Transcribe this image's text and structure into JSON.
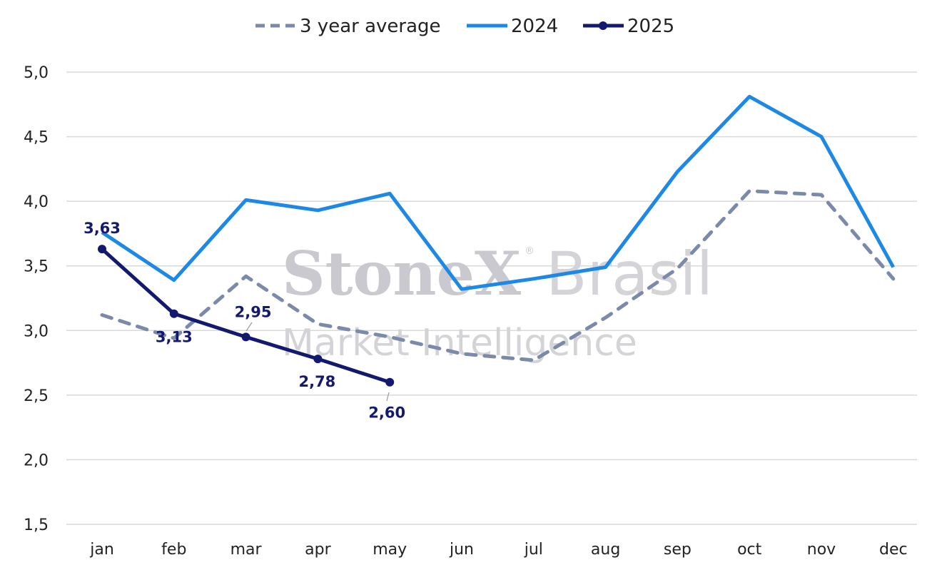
{
  "watermark": {
    "brand": "StoneX",
    "suffix": "Brasil",
    "registered": "®",
    "tagline": "Market Intelligence"
  },
  "chart_data": {
    "type": "line",
    "title": "",
    "xlabel": "",
    "ylabel": "",
    "categories": [
      "jan",
      "feb",
      "mar",
      "apr",
      "may",
      "jun",
      "jul",
      "aug",
      "sep",
      "oct",
      "nov",
      "dec"
    ],
    "ylim": [
      1.5,
      5.0
    ],
    "yticks": [
      1.5,
      2.0,
      2.5,
      3.0,
      3.5,
      4.0,
      4.5,
      5.0
    ],
    "ytick_labels": [
      "1,5",
      "2,0",
      "2,5",
      "3,0",
      "3,5",
      "4,0",
      "4,5",
      "5,0"
    ],
    "grid": true,
    "legend": "top-center",
    "series": [
      {
        "name": "3 year average",
        "style": "dashed",
        "color": "#7a8aa8",
        "values": [
          3.12,
          2.94,
          3.42,
          3.05,
          2.95,
          2.82,
          2.77,
          3.1,
          3.48,
          4.08,
          4.05,
          3.4
        ]
      },
      {
        "name": "2024",
        "style": "solid",
        "color": "#1e88e5",
        "values": [
          3.76,
          3.39,
          4.01,
          3.93,
          4.06,
          3.32,
          3.4,
          3.49,
          4.23,
          4.81,
          4.5,
          3.49
        ]
      },
      {
        "name": "2025",
        "style": "solid-markers",
        "color": "#13196e",
        "values": [
          3.63,
          3.13,
          2.95,
          2.78,
          2.6,
          null,
          null,
          null,
          null,
          null,
          null,
          null
        ],
        "data_labels": [
          "3,63",
          "3,13",
          "2,95",
          "2,78",
          "2,60"
        ]
      }
    ]
  }
}
